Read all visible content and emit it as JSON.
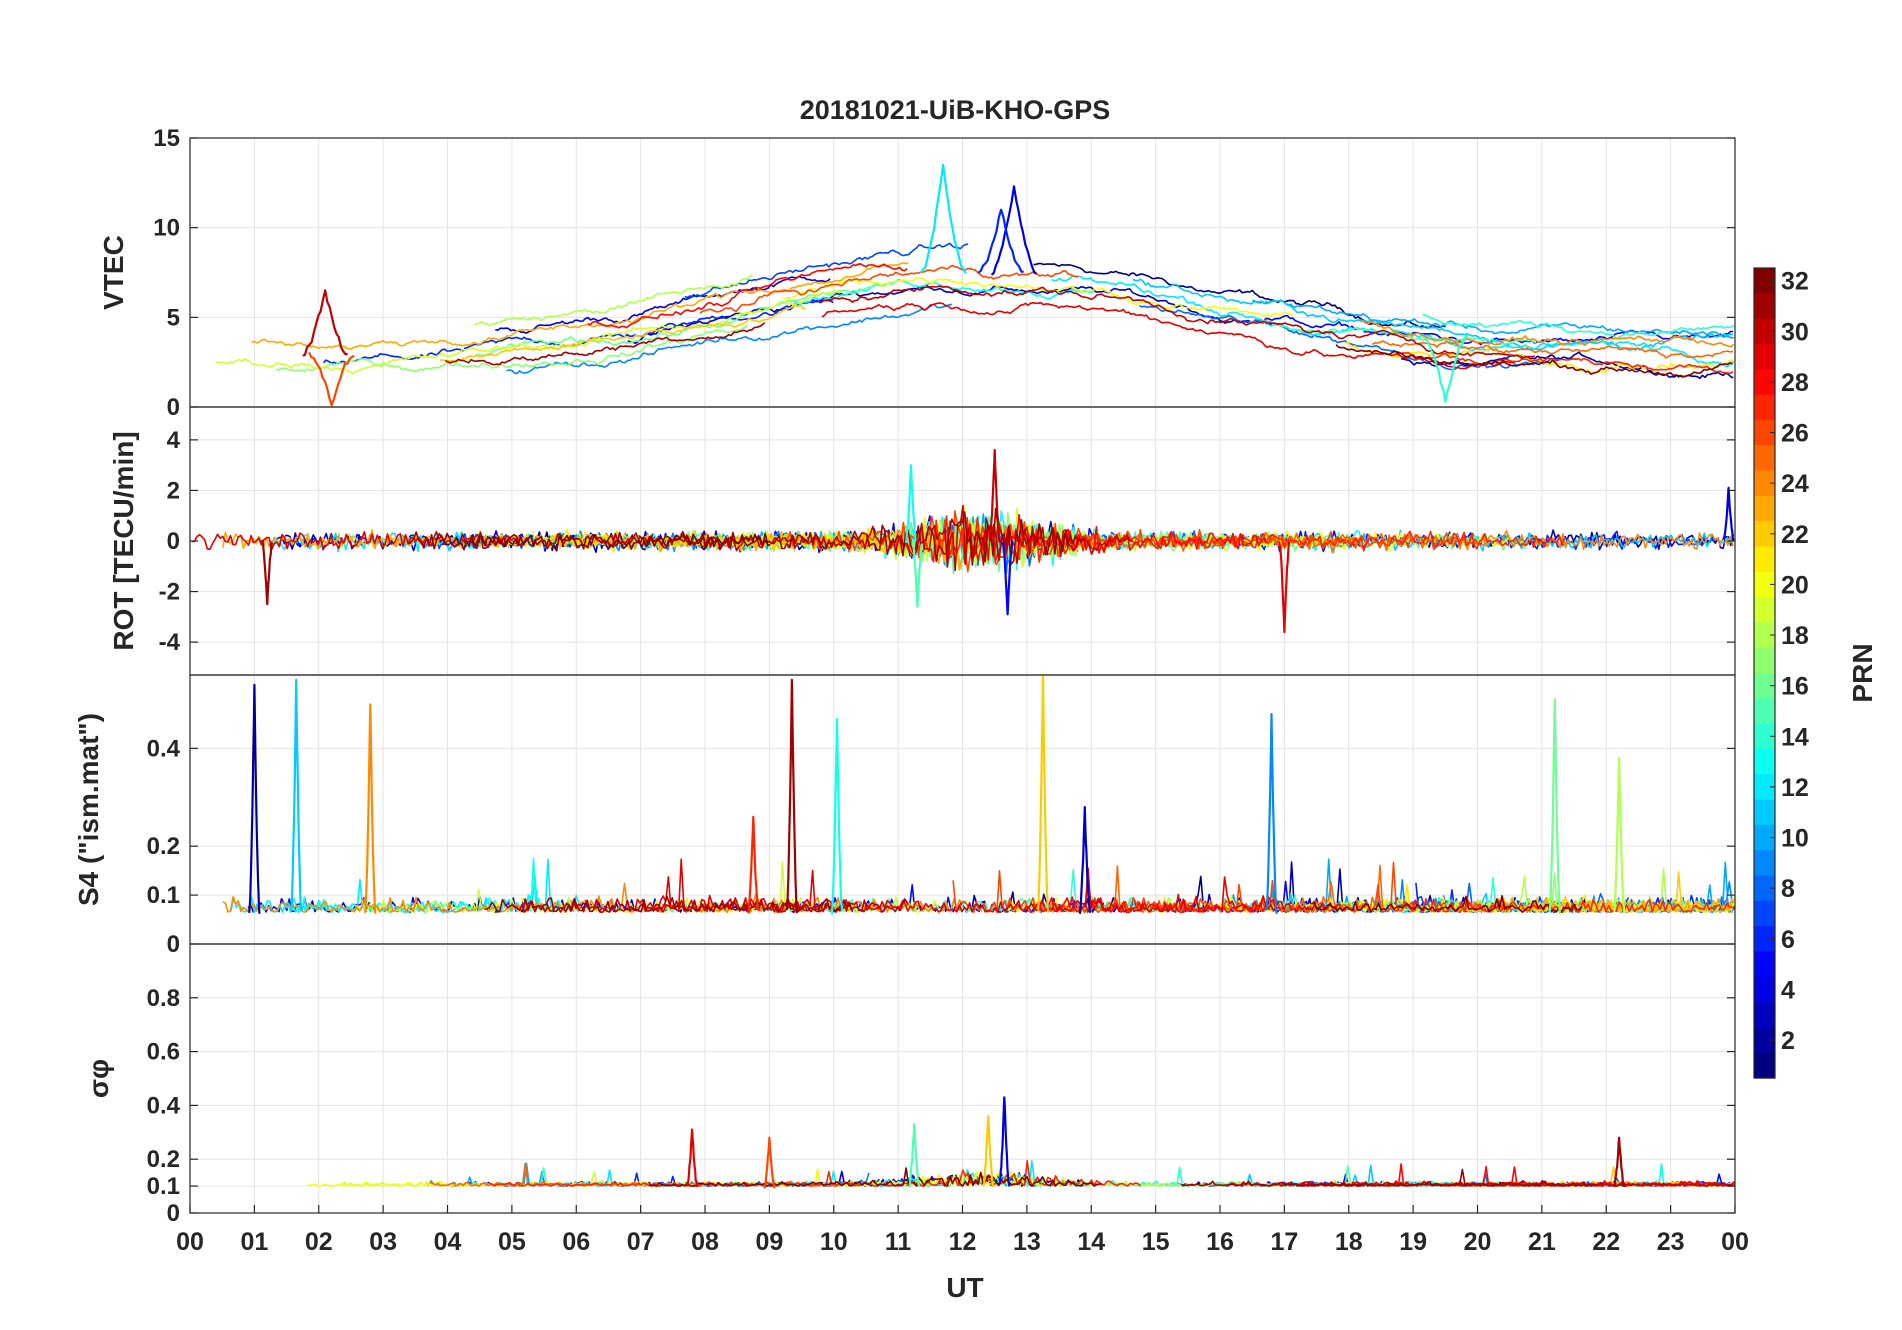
{
  "chart_data": {
    "type": "line",
    "title": "20181021-UiB-KHO-GPS",
    "xlabel": "UT",
    "xlim": [
      0,
      24
    ],
    "x_tick_labels": [
      "00",
      "01",
      "02",
      "03",
      "04",
      "05",
      "06",
      "07",
      "08",
      "09",
      "10",
      "11",
      "12",
      "13",
      "14",
      "15",
      "16",
      "17",
      "18",
      "19",
      "20",
      "21",
      "22",
      "23",
      "00"
    ],
    "grid": true,
    "colorbar": {
      "label": "PRN",
      "range": [
        1,
        32
      ],
      "colormap": "jet",
      "ticks": [
        "32",
        "30",
        "28",
        "26",
        "24",
        "22",
        "20",
        "18",
        "16",
        "14",
        "12",
        "10",
        "8",
        "6",
        "4",
        "2"
      ],
      "placement": "right"
    },
    "panels": [
      {
        "name": "VTEC",
        "ylabel": "VTEC",
        "ylim": [
          0,
          15
        ],
        "yticks": [
          {
            "value": 15,
            "label": "15"
          },
          {
            "value": 10,
            "label": "10"
          },
          {
            "value": 5,
            "label": "5"
          },
          {
            "value": 0,
            "label": "0"
          }
        ],
        "background": {
          "start": 2.8,
          "peak": 7.5,
          "peak_time": 12.4,
          "end": 3.6
        },
        "features": [
          {
            "prn": 12,
            "t": 11.7,
            "value": 13.5
          },
          {
            "prn": 4,
            "t": 12.8,
            "value": 12.3
          },
          {
            "prn": 6,
            "t": 12.6,
            "value": 11.0
          },
          {
            "prn": 30,
            "t": 2.1,
            "value": 6.5
          },
          {
            "prn": 26,
            "t": 2.2,
            "value": 0.1
          },
          {
            "prn": 14,
            "t": 19.5,
            "value": 0.3
          }
        ]
      },
      {
        "name": "ROT",
        "ylabel": "ROT [TECU/min]",
        "ylim": [
          -5.3,
          5.3
        ],
        "yticks": [
          {
            "value": 4,
            "label": "4"
          },
          {
            "value": 2,
            "label": "2"
          },
          {
            "value": 0,
            "label": "0"
          },
          {
            "value": -2,
            "label": "-2"
          },
          {
            "value": -4,
            "label": "-4"
          }
        ],
        "background": {
          "start": 0.0,
          "peak": 0.0,
          "peak_time": 12.4,
          "end": 0.0
        },
        "features": [
          {
            "prn": 30,
            "t": 12.5,
            "value": 3.6
          },
          {
            "prn": 13,
            "t": 11.2,
            "value": 3.0
          },
          {
            "prn": 31,
            "t": 1.2,
            "value": -2.5
          },
          {
            "prn": 5,
            "t": 12.7,
            "value": -2.9
          },
          {
            "prn": 29,
            "t": 17.0,
            "value": -3.6
          },
          {
            "prn": 4,
            "t": 23.9,
            "value": 2.1
          },
          {
            "prn": 15,
            "t": 11.3,
            "value": -2.6
          }
        ]
      },
      {
        "name": "S4",
        "ylabel": "S4 (\"ism.mat\")",
        "ylim": [
          0,
          0.55
        ],
        "yticks": [
          {
            "value": 0.4,
            "label": "0.4"
          },
          {
            "value": 0.2,
            "label": "0.2"
          },
          {
            "value": 0.1,
            "label": "0.1"
          },
          {
            "value": 0,
            "label": "0"
          }
        ],
        "background": {
          "start": 0.065,
          "peak": 0.07,
          "peak_time": 12.4,
          "end": 0.065
        },
        "features": [
          {
            "prn": 2,
            "t": 1.0,
            "value": 0.53
          },
          {
            "prn": 11,
            "t": 1.65,
            "value": 0.54
          },
          {
            "prn": 24,
            "t": 2.8,
            "value": 0.49
          },
          {
            "prn": 31,
            "t": 9.35,
            "value": 0.54
          },
          {
            "prn": 13,
            "t": 10.05,
            "value": 0.46
          },
          {
            "prn": 22,
            "t": 13.25,
            "value": 0.55
          },
          {
            "prn": 9,
            "t": 16.8,
            "value": 0.47
          },
          {
            "prn": 16,
            "t": 21.2,
            "value": 0.5
          },
          {
            "prn": 18,
            "t": 22.2,
            "value": 0.38
          },
          {
            "prn": 27,
            "t": 8.75,
            "value": 0.26
          },
          {
            "prn": 3,
            "t": 13.9,
            "value": 0.28
          }
        ]
      },
      {
        "name": "SigmaPhi",
        "ylabel": "σφ",
        "ylim": [
          0,
          1
        ],
        "yticks": [
          {
            "value": 0.8,
            "label": "0.8"
          },
          {
            "value": 0.6,
            "label": "0.6"
          },
          {
            "value": 0.4,
            "label": "0.4"
          },
          {
            "value": 0.2,
            "label": "0.2"
          },
          {
            "value": 0.1,
            "label": "0.1"
          },
          {
            "value": 0,
            "label": "0"
          }
        ],
        "background": {
          "start": 0.1,
          "peak": 0.12,
          "peak_time": 12.4,
          "end": 0.1
        },
        "features": [
          {
            "prn": 4,
            "t": 12.65,
            "value": 0.43
          },
          {
            "prn": 22,
            "t": 12.4,
            "value": 0.36
          },
          {
            "prn": 15,
            "t": 11.25,
            "value": 0.33
          },
          {
            "prn": 29,
            "t": 7.8,
            "value": 0.31
          },
          {
            "prn": 26,
            "t": 9.0,
            "value": 0.28
          },
          {
            "prn": 31,
            "t": 22.2,
            "value": 0.28
          }
        ]
      }
    ]
  }
}
